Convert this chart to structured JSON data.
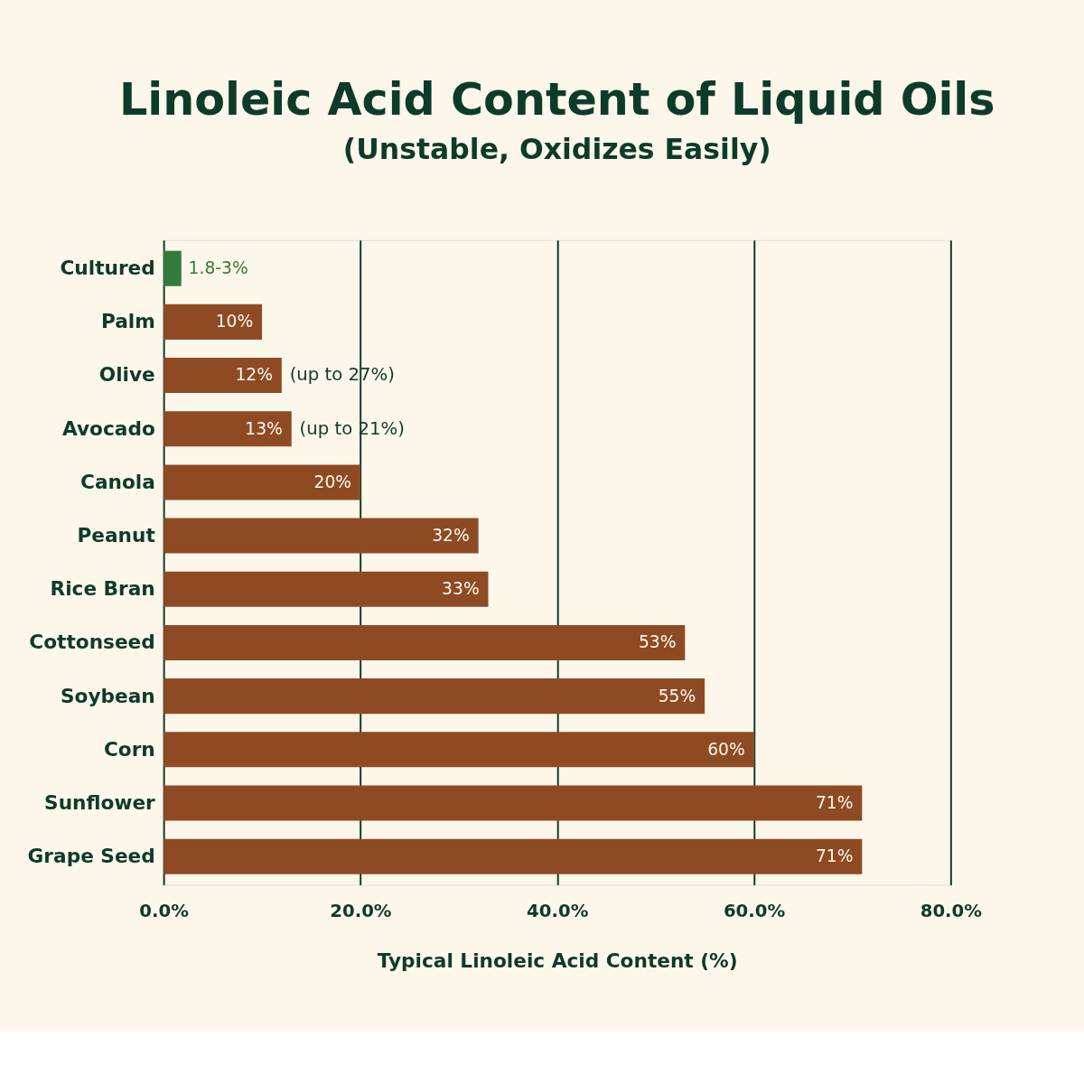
{
  "chart_data": {
    "type": "bar",
    "orientation": "horizontal",
    "title": "Linoleic Acid Content of Liquid Oils",
    "subtitle": "(Unstable, Oxidizes Easily)",
    "xlabel": "Typical Linoleic Acid Content (%)",
    "categories": [
      "Cultured",
      "Palm",
      "Olive",
      "Avocado",
      "Canola",
      "Peanut",
      "Rice Bran",
      "Cottonseed",
      "Soybean",
      "Corn",
      "Sunflower",
      "Grape Seed"
    ],
    "values": [
      1.8,
      10,
      12,
      13,
      20,
      32,
      33,
      53,
      55,
      60,
      71,
      71
    ],
    "colors": [
      "#347a3a",
      "#8e4b23",
      "#8e4b23",
      "#8e4b23",
      "#8e4b23",
      "#8e4b23",
      "#8e4b23",
      "#8e4b23",
      "#8e4b23",
      "#8e4b23",
      "#8e4b23",
      "#8e4b23"
    ],
    "value_labels": [
      "1.8-3%",
      "10%",
      "12%",
      "13%",
      "20%",
      "32%",
      "33%",
      "53%",
      "55%",
      "60%",
      "71%",
      "71%"
    ],
    "xlim": [
      0,
      80
    ],
    "xticks": [
      {
        "value": 0,
        "label": "0.0%"
      },
      {
        "value": 20,
        "label": "20.0%"
      },
      {
        "value": 40,
        "label": "40.0%"
      },
      {
        "value": 60,
        "label": "60.0%"
      },
      {
        "value": 80,
        "label": "80.0%"
      }
    ],
    "annotations": [
      {
        "text": "(up to 27%)",
        "x": 12,
        "y": "Olive"
      },
      {
        "text": "(up to 21%)",
        "x": 13,
        "y": "Avocado"
      }
    ],
    "grid": "x"
  }
}
